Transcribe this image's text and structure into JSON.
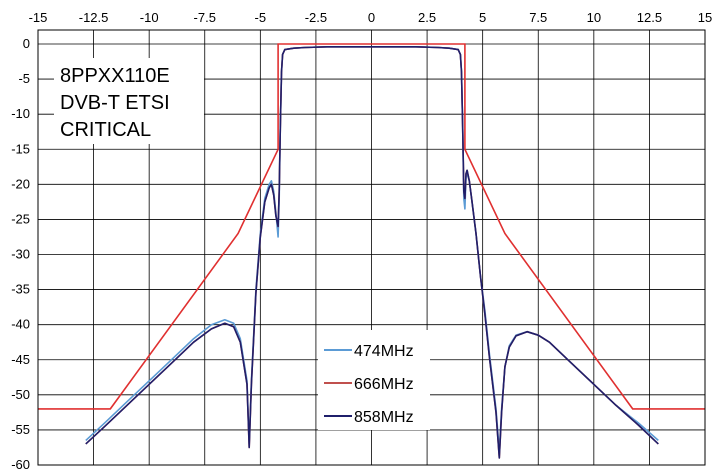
{
  "chart_data": {
    "type": "line",
    "title_lines": [
      "8PPXX110E",
      "DVB-T ETSI",
      "CRITICAL"
    ],
    "xlim": [
      -15,
      15
    ],
    "ylim": [
      -60,
      0
    ],
    "x_ticks": [
      "-15",
      "-12.5",
      "-10",
      "-7.5",
      "-5",
      "-2.5",
      "0",
      "2.5",
      "5",
      "7.5",
      "10",
      "12.5",
      "15"
    ],
    "y_ticks": [
      "0",
      "-5",
      "-10",
      "-15",
      "-20",
      "-25",
      "-30",
      "-35",
      "-40",
      "-45",
      "-50",
      "-55",
      "-60"
    ],
    "x_tick_values": [
      -15,
      -12.5,
      -10,
      -7.5,
      -5,
      -2.5,
      0,
      2.5,
      5,
      7.5,
      10,
      12.5,
      15
    ],
    "y_tick_values": [
      0,
      -5,
      -10,
      -15,
      -20,
      -25,
      -30,
      -35,
      -40,
      -45,
      -50,
      -55,
      -60
    ],
    "x_axis_position": "top",
    "grid": true,
    "legend_position": "bottom-center",
    "series": [
      {
        "name": "474MHz",
        "color": "#5b9bd5",
        "x": [
          -12.85,
          -12.0,
          -11.0,
          -10.0,
          -9.0,
          -8.0,
          -7.2,
          -6.6,
          -6.2,
          -5.9,
          -5.6,
          -5.5,
          -5.4,
          -5.2,
          -5.0,
          -4.8,
          -4.6,
          -4.5,
          -4.4,
          -4.3,
          -4.2,
          -4.15,
          -4.1,
          -4.05,
          -4.0,
          -3.9,
          -3.5,
          -3.0,
          -2.0,
          -1.0,
          0.0,
          1.0,
          2.0,
          3.0,
          3.5,
          3.9,
          4.0,
          4.05,
          4.1,
          4.15,
          4.2,
          4.25,
          4.3,
          4.4,
          4.5,
          4.7,
          4.9,
          5.1,
          5.3,
          5.6,
          5.75,
          5.85,
          6.0,
          6.2,
          6.5,
          7.0,
          7.5,
          8.0,
          9.0,
          10.0,
          11.0,
          12.0,
          12.9
        ],
        "y": [
          -56.5,
          -54.0,
          -51.0,
          -48.0,
          -45.0,
          -42.0,
          -40.0,
          -39.3,
          -39.8,
          -42.0,
          -48.0,
          -57.0,
          -48.0,
          -35.0,
          -27.0,
          -22.0,
          -20.0,
          -19.5,
          -21.0,
          -24.0,
          -27.5,
          -22.0,
          -12.0,
          -4.0,
          -1.5,
          -0.8,
          -0.6,
          -0.5,
          -0.4,
          -0.4,
          -0.4,
          -0.4,
          -0.4,
          -0.5,
          -0.6,
          -0.8,
          -1.5,
          -4.0,
          -12.0,
          -22.0,
          -23.5,
          -19.0,
          -18.5,
          -19.5,
          -22.0,
          -27.0,
          -33.0,
          -38.0,
          -44.0,
          -52.0,
          -58.0,
          -52.0,
          -46.0,
          -43.0,
          -41.5,
          -41.0,
          -41.5,
          -42.5,
          -45.5,
          -48.5,
          -51.5,
          -54.0,
          -56.5
        ]
      },
      {
        "name": "666MHz",
        "color": "#c0504d",
        "x": [
          -12.85,
          -12.0,
          -11.0,
          -10.0,
          -9.0,
          -8.0,
          -7.2,
          -6.6,
          -6.2,
          -5.9,
          -5.6,
          -5.5,
          -5.4,
          -5.2,
          -5.0,
          -4.8,
          -4.6,
          -4.5,
          -4.4,
          -4.3,
          -4.2,
          -4.15,
          -4.1,
          -4.05,
          -4.0,
          -3.9,
          -3.5,
          -3.0,
          -2.0,
          -1.0,
          0.0,
          1.0,
          2.0,
          3.0,
          3.5,
          3.9,
          4.0,
          4.05,
          4.1,
          4.15,
          4.2,
          4.25,
          4.3,
          4.4,
          4.5,
          4.7,
          4.9,
          5.1,
          5.3,
          5.6,
          5.75,
          5.85,
          6.0,
          6.2,
          6.5,
          7.0,
          7.5,
          8.0,
          9.0,
          10.0,
          11.0,
          12.0,
          12.9
        ],
        "y": [
          -57.0,
          -54.5,
          -51.5,
          -48.5,
          -45.5,
          -42.5,
          -40.6,
          -39.8,
          -40.3,
          -42.5,
          -48.5,
          -57.5,
          -48.5,
          -35.5,
          -27.5,
          -22.5,
          -20.5,
          -20.0,
          -21.5,
          -24.5,
          -26.0,
          -21.0,
          -12.0,
          -4.0,
          -1.5,
          -0.8,
          -0.6,
          -0.5,
          -0.4,
          -0.4,
          -0.4,
          -0.4,
          -0.4,
          -0.5,
          -0.6,
          -0.8,
          -1.5,
          -4.0,
          -12.0,
          -21.0,
          -22.0,
          -18.5,
          -18.0,
          -19.5,
          -22.0,
          -27.0,
          -33.0,
          -38.5,
          -44.5,
          -52.5,
          -59.0,
          -52.5,
          -46.0,
          -43.2,
          -41.6,
          -41.0,
          -41.5,
          -42.5,
          -45.5,
          -48.5,
          -51.5,
          -54.3,
          -57.0
        ]
      },
      {
        "name": "858MHz",
        "color": "#1f1f6b",
        "x": [
          -12.85,
          -12.0,
          -11.0,
          -10.0,
          -9.0,
          -8.0,
          -7.2,
          -6.6,
          -6.2,
          -5.9,
          -5.6,
          -5.5,
          -5.4,
          -5.2,
          -5.0,
          -4.8,
          -4.6,
          -4.5,
          -4.4,
          -4.3,
          -4.2,
          -4.15,
          -4.1,
          -4.05,
          -4.0,
          -3.9,
          -3.5,
          -3.0,
          -2.0,
          -1.0,
          0.0,
          1.0,
          2.0,
          3.0,
          3.5,
          3.9,
          4.0,
          4.05,
          4.1,
          4.15,
          4.2,
          4.25,
          4.3,
          4.4,
          4.5,
          4.7,
          4.9,
          5.1,
          5.3,
          5.6,
          5.75,
          5.85,
          6.0,
          6.2,
          6.5,
          7.0,
          7.5,
          8.0,
          9.0,
          10.0,
          11.0,
          12.0,
          12.9
        ],
        "y": [
          -57.0,
          -54.5,
          -51.5,
          -48.5,
          -45.5,
          -42.5,
          -40.6,
          -39.8,
          -40.3,
          -42.5,
          -48.5,
          -57.5,
          -48.5,
          -35.5,
          -27.5,
          -22.5,
          -20.5,
          -20.0,
          -21.5,
          -24.5,
          -26.0,
          -21.0,
          -12.0,
          -4.0,
          -1.5,
          -0.8,
          -0.6,
          -0.5,
          -0.4,
          -0.4,
          -0.4,
          -0.4,
          -0.4,
          -0.5,
          -0.6,
          -0.8,
          -1.5,
          -4.0,
          -12.0,
          -21.0,
          -22.0,
          -18.5,
          -18.0,
          -19.5,
          -22.0,
          -27.0,
          -33.0,
          -38.5,
          -44.5,
          -52.5,
          -59.0,
          -52.5,
          -46.0,
          -43.2,
          -41.6,
          -41.0,
          -41.5,
          -42.5,
          -45.5,
          -48.5,
          -51.5,
          -54.3,
          -57.0
        ]
      }
    ],
    "mask": {
      "color": "#e03030",
      "x": [
        -15,
        -11.75,
        -6.0,
        -4.2,
        -4.2,
        -4.2,
        4.2,
        4.2,
        4.2,
        6.0,
        11.75,
        15
      ],
      "y": [
        -52,
        -52,
        -27,
        -15,
        -15,
        0,
        0,
        -15,
        -15,
        -27,
        -52,
        -52
      ]
    }
  }
}
